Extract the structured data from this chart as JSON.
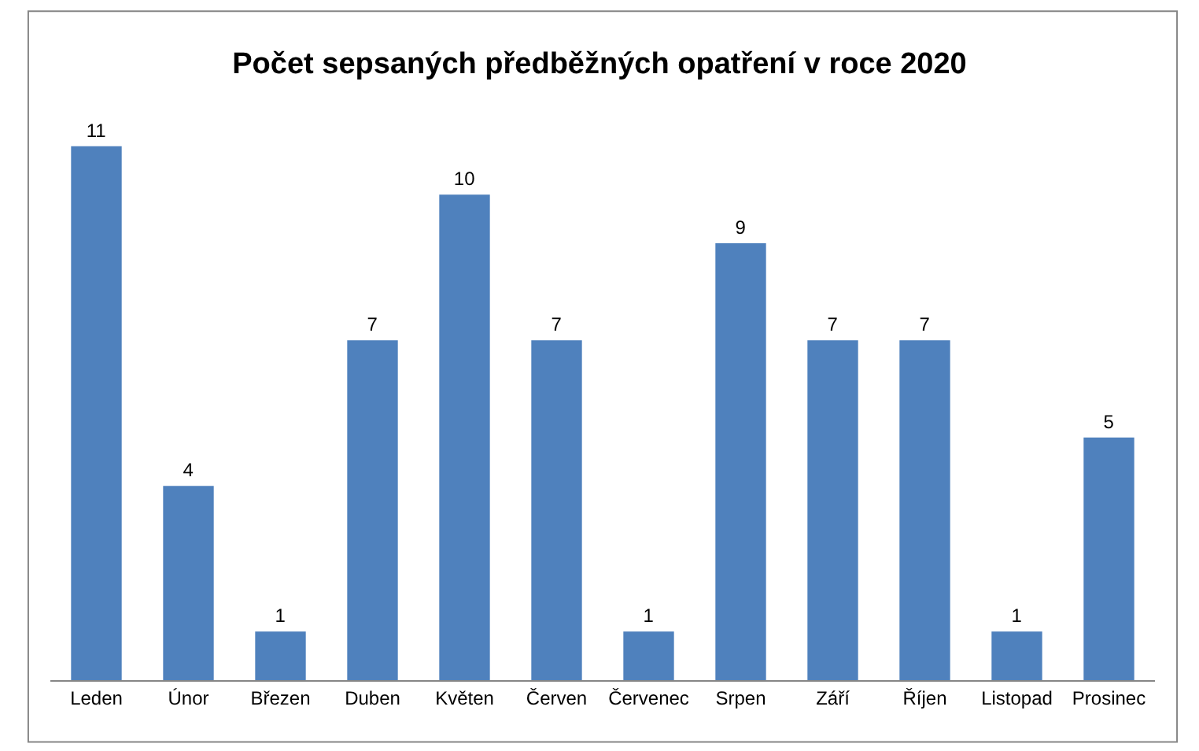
{
  "chart_data": {
    "type": "bar",
    "title": "Počet sepsaných předběžných opatření v roce 2020",
    "categories": [
      "Leden",
      "Únor",
      "Březen",
      "Duben",
      "Květen",
      "Červen",
      "Červenec",
      "Srpen",
      "Září",
      "Říjen",
      "Listopad",
      "Prosinec"
    ],
    "values": [
      11,
      4,
      1,
      7,
      10,
      7,
      1,
      9,
      7,
      7,
      1,
      5
    ],
    "color": "#4f81bd",
    "data_labels": true,
    "tick_labels": "x"
  }
}
